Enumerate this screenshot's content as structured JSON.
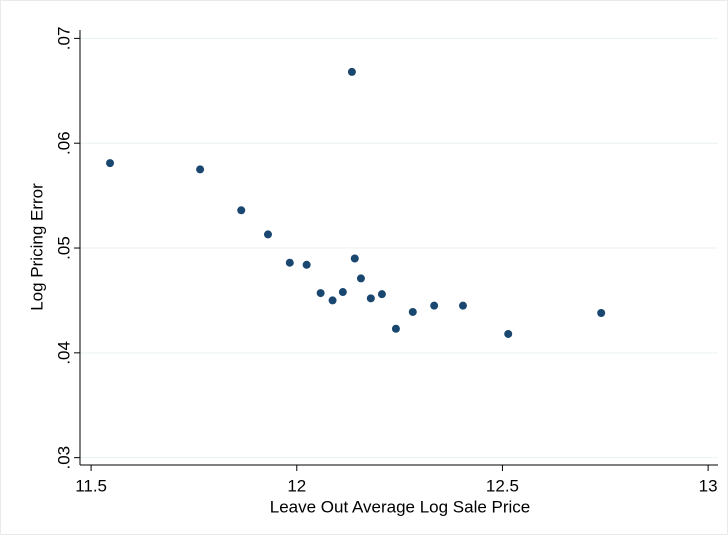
{
  "chart_data": {
    "type": "scatter",
    "x_label": "Leave Out Average Log Sale Price",
    "y_label": "Log Pricing Error",
    "x": [
      11.546,
      11.765,
      11.865,
      11.93,
      11.983,
      12.024,
      12.058,
      12.087,
      12.112,
      12.134,
      12.141,
      12.156,
      12.18,
      12.207,
      12.241,
      12.282,
      12.334,
      12.404,
      12.514,
      12.74
    ],
    "values": [
      0.0581,
      0.0575,
      0.0536,
      0.0513,
      0.0486,
      0.0484,
      0.0457,
      0.045,
      0.0458,
      0.0668,
      0.049,
      0.0471,
      0.0452,
      0.0456,
      0.0423,
      0.0439,
      0.0445,
      0.0445,
      0.0418,
      0.0438
    ],
    "color": "#1a476f",
    "xlim": [
      11.473,
      13.024
    ],
    "ylim": [
      0.0293,
      0.0708
    ],
    "xticks": [
      11.5,
      12,
      12.5,
      13
    ],
    "yticks": [
      {
        "value": 0.03,
        "label": ".03"
      },
      {
        "value": 0.04,
        "label": ".04"
      },
      {
        "value": 0.05,
        "label": ".05"
      },
      {
        "value": 0.06,
        "label": ".06"
      },
      {
        "value": 0.07,
        "label": ".07"
      }
    ],
    "grid": true
  }
}
